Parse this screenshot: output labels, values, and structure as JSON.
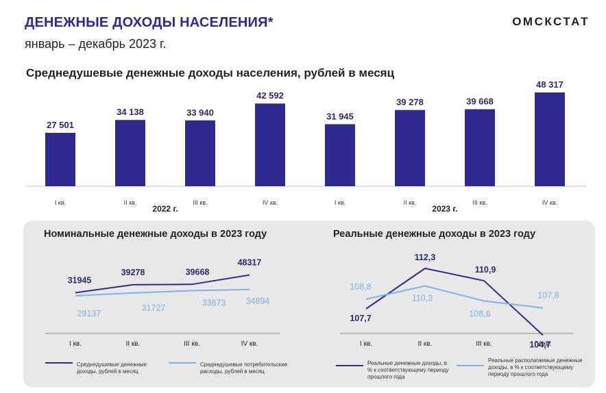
{
  "header": {
    "title": "ДЕНЕЖНЫЕ ДОХОДЫ НАСЕЛЕНИЯ*",
    "subtitle": "январь – декабрь 2023 г.",
    "brand": "ОМСКСТАТ"
  },
  "colors": {
    "dark": "#2e2a8f",
    "light": "#7ab4ea",
    "panel": "#e8e8e8"
  },
  "chart_data": [
    {
      "type": "bar",
      "title": "Среднедушевые денежные доходы населения, рублей в месяц",
      "categories": [
        "I кв.",
        "II кв.",
        "III кв.",
        "IV кв.",
        "I кв.",
        "II кв.",
        "III кв.",
        "IV кв."
      ],
      "groups": [
        {
          "label": "2022 г.",
          "categories": [
            0,
            1,
            2,
            3
          ]
        },
        {
          "label": "2023 г.",
          "categories": [
            4,
            5,
            6,
            7
          ]
        }
      ],
      "values": [
        27501,
        34138,
        33940,
        42592,
        31945,
        39278,
        39668,
        48317
      ],
      "value_labels": [
        "27 501",
        "34 138",
        "33 940",
        "42 592",
        "31 945",
        "39 278",
        "39 668",
        "48 317"
      ],
      "ylim": [
        0,
        50000
      ],
      "grid": false
    },
    {
      "type": "line",
      "title": "Номинальные денежные доходы в 2023 году",
      "categories": [
        "I кв.",
        "II кв.",
        "III кв.",
        "IV кв."
      ],
      "series": [
        {
          "name": "Среднедушевые денежные доходы, рублей в месяц",
          "values": [
            31945,
            39278,
            39668,
            48317
          ],
          "labels": [
            "31945",
            "39278",
            "39668",
            "48317"
          ]
        },
        {
          "name": "Среднедушевые потребительские расходы, рублей в месяц",
          "values": [
            29137,
            31727,
            33873,
            34894
          ],
          "labels": [
            "29137",
            "31727",
            "33873",
            "34894"
          ]
        }
      ],
      "legend_position": "bottom"
    },
    {
      "type": "line",
      "title": "Реальные денежные доходы в 2023 году",
      "categories": [
        "I кв.",
        "II кв.",
        "III кв.",
        "IV кв."
      ],
      "series": [
        {
          "name": "Реальные денежные доходы, в % к соответствующему периоду прошлого года",
          "values": [
            107.7,
            112.3,
            110.9,
            104.7
          ],
          "labels": [
            "107,7",
            "112,3",
            "110,9",
            "104,7"
          ]
        },
        {
          "name": "Реальные располагаемые денежные доходы, в % к соответствующему периоду прошлого года",
          "values": [
            108.8,
            110.3,
            108.6,
            107.8
          ],
          "labels": [
            "108,8",
            "110,3",
            "108,6",
            "107,8"
          ]
        }
      ],
      "legend_position": "bottom"
    }
  ]
}
